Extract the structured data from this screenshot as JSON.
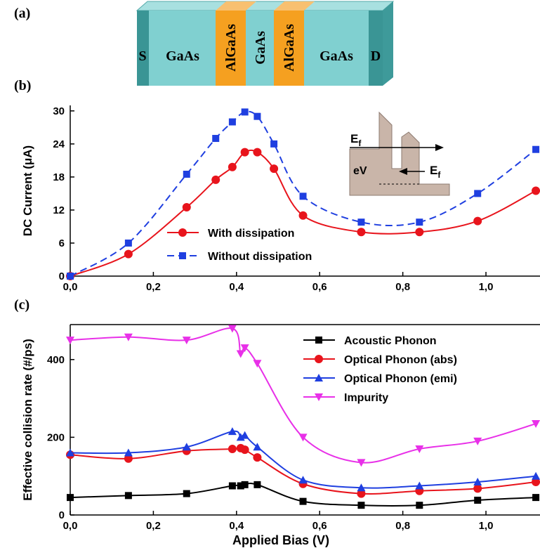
{
  "device": {
    "label": "(a)",
    "layers": [
      "S",
      "GaAs",
      "AlGaAs",
      "GaAs",
      "AlGaAs",
      "GaAs",
      "D"
    ]
  },
  "chart_data": [
    {
      "type": "line",
      "panel": "(b)",
      "y_label": "DC Current (μA)",
      "x": [
        0,
        0.14,
        0.28,
        0.35,
        0.39,
        0.42,
        0.45,
        0.49,
        0.56,
        0.7,
        0.84,
        0.98,
        1.12
      ],
      "series": [
        {
          "name": "With dissipation",
          "color": "#e8141c",
          "marker": "circle",
          "dashed": false,
          "values": [
            0,
            4,
            12.5,
            17.5,
            19.8,
            22.5,
            22.5,
            19.5,
            11,
            8,
            8,
            10,
            15.5
          ]
        },
        {
          "name": "Without dissipation",
          "color": "#1f3fe0",
          "marker": "square",
          "dashed": true,
          "values": [
            0,
            6,
            18.5,
            25,
            28,
            29.8,
            29,
            24,
            14.5,
            9.8,
            9.8,
            15,
            23
          ]
        }
      ],
      "xlim": [
        0,
        1.13
      ],
      "ylim": [
        0,
        31
      ],
      "xticks": [
        {
          "value": 0,
          "label": "0,0"
        },
        {
          "value": 0.2,
          "label": "0,2"
        },
        {
          "value": 0.4,
          "label": "0,4"
        },
        {
          "value": 0.6,
          "label": "0,6"
        },
        {
          "value": 0.8,
          "label": "0,8"
        },
        {
          "value": 1.0,
          "label": "1,0"
        }
      ],
      "yticks": [
        0,
        6,
        12,
        18,
        24,
        30
      ],
      "legend": "lower center",
      "inset": {
        "left_level": {
          "main": "E",
          "sub": "f"
        },
        "bias": "eV",
        "right_level": {
          "main": "E",
          "sub": "f"
        }
      }
    },
    {
      "type": "line",
      "panel": "(c)",
      "y_label": "Effective collision rate (#/ps)",
      "x_label": "Applied Bias (V)",
      "x": [
        0,
        0.14,
        0.28,
        0.39,
        0.41,
        0.42,
        0.45,
        0.56,
        0.7,
        0.84,
        0.98,
        1.12
      ],
      "series": [
        {
          "name": "Acoustic Phonon",
          "color": "#000000",
          "marker": "square",
          "dashed": false,
          "values": [
            45,
            50,
            55,
            75,
            75,
            78,
            78,
            35,
            25,
            25,
            38,
            45
          ]
        },
        {
          "name": "Optical Phonon (abs)",
          "color": "#e8141c",
          "marker": "circle",
          "dashed": false,
          "values": [
            155,
            145,
            165,
            170,
            172,
            168,
            148,
            80,
            55,
            62,
            68,
            85
          ]
        },
        {
          "name": "Optical Phonon (emi)",
          "color": "#1f3fe0",
          "marker": "triangle",
          "dashed": false,
          "values": [
            160,
            160,
            175,
            215,
            200,
            205,
            175,
            90,
            70,
            75,
            85,
            100
          ]
        },
        {
          "name": "Impurity",
          "color": "#e830e8",
          "marker": "triangle-down",
          "dashed": false,
          "values": [
            450,
            458,
            450,
            480,
            415,
            430,
            390,
            200,
            135,
            170,
            190,
            235
          ]
        }
      ],
      "xlim": [
        0,
        1.13
      ],
      "ylim": [
        0,
        490
      ],
      "xticks": [
        {
          "value": 0,
          "label": "0,0"
        },
        {
          "value": 0.2,
          "label": "0,2"
        },
        {
          "value": 0.4,
          "label": "0,4"
        },
        {
          "value": 0.6,
          "label": "0,6"
        },
        {
          "value": 0.8,
          "label": "0,8"
        },
        {
          "value": 1.0,
          "label": "1,0"
        }
      ],
      "yticks": [
        0,
        200,
        400
      ],
      "legend": "upper right"
    }
  ]
}
